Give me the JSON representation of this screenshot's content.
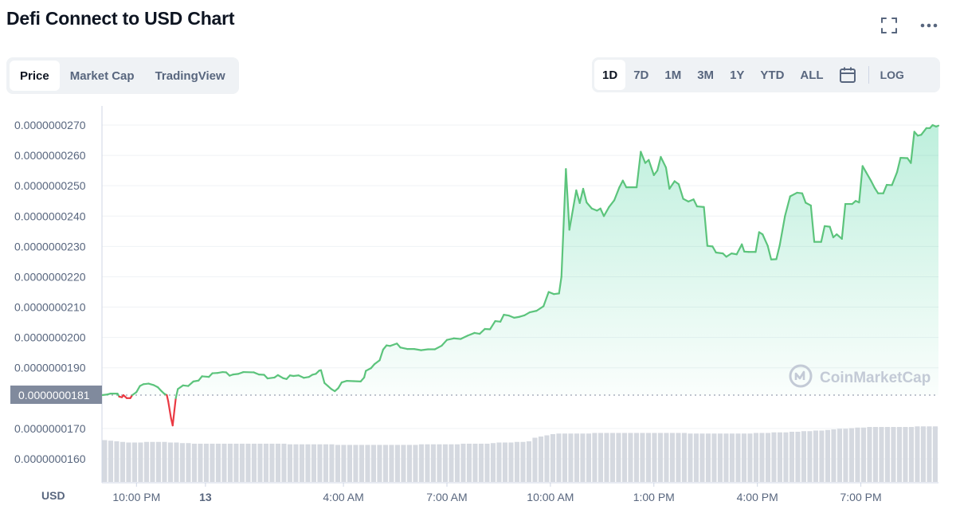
{
  "title": "Defi Connect to USD Chart",
  "header_icons": [
    "fullscreen-icon",
    "more-icon"
  ],
  "tabs": [
    {
      "label": "Price",
      "active": true
    },
    {
      "label": "Market Cap",
      "active": false
    },
    {
      "label": "TradingView",
      "active": false
    }
  ],
  "ranges": [
    {
      "label": "1D",
      "active": true
    },
    {
      "label": "7D",
      "active": false
    },
    {
      "label": "1M",
      "active": false
    },
    {
      "label": "3M",
      "active": false
    },
    {
      "label": "1Y",
      "active": false
    },
    {
      "label": "YTD",
      "active": false
    },
    {
      "label": "ALL",
      "active": false
    }
  ],
  "calendar_icon": "calendar-icon",
  "log_label": "LOG",
  "watermark": "CoinMarketCap",
  "colors": {
    "up": "#16c784",
    "line_up": "#5cc47c",
    "down": "#ea3943",
    "grid": "#eff2f5",
    "current_label_bg": "#808a9d",
    "volume": "#d5d9e0"
  },
  "chart_data": {
    "type": "line",
    "title": "Defi Connect to USD Chart",
    "ylabel": "USD",
    "y_ticks": [
      "0.0000000160",
      "0.0000000170",
      "0.0000000181",
      "0.0000000190",
      "0.0000000200",
      "0.0000000210",
      "0.0000000220",
      "0.0000000230",
      "0.0000000240",
      "0.0000000250",
      "0.0000000260",
      "0.0000000270"
    ],
    "y_tick_values": [
      1.6e-08,
      1.7e-08,
      1.81e-08,
      1.9e-08,
      2e-08,
      2.1e-08,
      2.2e-08,
      2.3e-08,
      2.4e-08,
      2.5e-08,
      2.6e-08,
      2.7e-08
    ],
    "ylim": [
      1.55e-08,
      2.72e-08
    ],
    "x_unit": "hours since 12 21:00",
    "xlim": [
      0,
      24.25
    ],
    "x_ticks": [
      {
        "label": "10:00 PM",
        "x": 1,
        "bold": false
      },
      {
        "label": "13",
        "x": 3,
        "bold": true
      },
      {
        "label": "4:00 AM",
        "x": 7,
        "bold": false
      },
      {
        "label": "7:00 AM",
        "x": 10,
        "bold": false
      },
      {
        "label": "10:00 AM",
        "x": 13,
        "bold": false
      },
      {
        "label": "1:00 PM",
        "x": 16,
        "bold": false
      },
      {
        "label": "4:00 PM",
        "x": 19,
        "bold": false
      },
      {
        "label": "7:00 PM",
        "x": 22,
        "bold": false
      }
    ],
    "reference_price": 1.81e-08,
    "reference_label": "0.0000000181",
    "series": [
      {
        "points": [
          [
            0.0,
            1.81e-08
          ],
          [
            0.15,
            1.812e-08
          ],
          [
            0.25,
            1.815e-08
          ],
          [
            0.45,
            1.815e-08
          ],
          [
            0.5,
            1.805e-08
          ],
          [
            0.58,
            1.803e-08
          ],
          [
            0.62,
            1.81e-08
          ],
          [
            0.72,
            1.8e-08
          ],
          [
            0.82,
            1.8e-08
          ],
          [
            0.88,
            1.81e-08
          ],
          [
            1.0,
            1.82e-08
          ],
          [
            1.1,
            1.84e-08
          ],
          [
            1.2,
            1.846e-08
          ],
          [
            1.35,
            1.848e-08
          ],
          [
            1.5,
            1.843e-08
          ],
          [
            1.62,
            1.836e-08
          ],
          [
            1.7,
            1.826e-08
          ],
          [
            1.8,
            1.815e-08
          ],
          [
            1.88,
            1.81e-08
          ],
          [
            1.92,
            1.79e-08
          ],
          [
            2.0,
            1.735e-08
          ],
          [
            2.05,
            1.71e-08
          ],
          [
            2.1,
            1.76e-08
          ],
          [
            2.14,
            1.8e-08
          ],
          [
            2.2,
            1.83e-08
          ],
          [
            2.35,
            1.842e-08
          ],
          [
            2.5,
            1.84e-08
          ],
          [
            2.65,
            1.855e-08
          ],
          [
            2.8,
            1.858e-08
          ],
          [
            2.9,
            1.872e-08
          ],
          [
            3.1,
            1.87e-08
          ],
          [
            3.2,
            1.882e-08
          ],
          [
            3.35,
            1.883e-08
          ],
          [
            3.5,
            1.886e-08
          ],
          [
            3.6,
            1.885e-08
          ],
          [
            3.7,
            1.874e-08
          ],
          [
            3.8,
            1.878e-08
          ],
          [
            3.95,
            1.88e-08
          ],
          [
            4.1,
            1.886e-08
          ],
          [
            4.4,
            1.885e-08
          ],
          [
            4.55,
            1.878e-08
          ],
          [
            4.7,
            1.877e-08
          ],
          [
            4.8,
            1.865e-08
          ],
          [
            5.0,
            1.868e-08
          ],
          [
            5.1,
            1.876e-08
          ],
          [
            5.25,
            1.866e-08
          ],
          [
            5.35,
            1.863e-08
          ],
          [
            5.45,
            1.875e-08
          ],
          [
            5.55,
            1.873e-08
          ],
          [
            5.7,
            1.875e-08
          ],
          [
            5.85,
            1.867e-08
          ],
          [
            6.0,
            1.87e-08
          ],
          [
            6.1,
            1.877e-08
          ],
          [
            6.2,
            1.88e-08
          ],
          [
            6.3,
            1.891e-08
          ],
          [
            6.35,
            1.892e-08
          ],
          [
            6.45,
            1.85e-08
          ],
          [
            6.55,
            1.84e-08
          ],
          [
            6.65,
            1.83e-08
          ],
          [
            6.75,
            1.823e-08
          ],
          [
            6.85,
            1.833e-08
          ],
          [
            6.95,
            1.852e-08
          ],
          [
            7.1,
            1.857e-08
          ],
          [
            7.3,
            1.856e-08
          ],
          [
            7.5,
            1.855e-08
          ],
          [
            7.6,
            1.868e-08
          ],
          [
            7.65,
            1.89e-08
          ],
          [
            7.8,
            1.899e-08
          ],
          [
            7.9,
            1.912e-08
          ],
          [
            8.05,
            1.925e-08
          ],
          [
            8.15,
            1.96e-08
          ],
          [
            8.25,
            1.974e-08
          ],
          [
            8.35,
            1.972e-08
          ],
          [
            8.55,
            1.98e-08
          ],
          [
            8.65,
            1.967e-08
          ],
          [
            8.85,
            1.962e-08
          ],
          [
            9.05,
            1.962e-08
          ],
          [
            9.25,
            1.958e-08
          ],
          [
            9.45,
            1.961e-08
          ],
          [
            9.65,
            1.961e-08
          ],
          [
            9.85,
            1.973e-08
          ],
          [
            10.0,
            1.992e-08
          ],
          [
            10.2,
            1.997e-08
          ],
          [
            10.4,
            1.995e-08
          ],
          [
            10.6,
            2.006e-08
          ],
          [
            10.8,
            2.015e-08
          ],
          [
            10.95,
            2.012e-08
          ],
          [
            11.1,
            2.028e-08
          ],
          [
            11.25,
            2.027e-08
          ],
          [
            11.4,
            2.054e-08
          ],
          [
            11.55,
            2.052e-08
          ],
          [
            11.65,
            2.075e-08
          ],
          [
            11.8,
            2.072e-08
          ],
          [
            11.95,
            2.065e-08
          ],
          [
            12.1,
            2.068e-08
          ],
          [
            12.25,
            2.073e-08
          ],
          [
            12.4,
            2.083e-08
          ],
          [
            12.6,
            2.088e-08
          ],
          [
            12.8,
            2.103e-08
          ],
          [
            12.95,
            2.15e-08
          ],
          [
            13.1,
            2.143e-08
          ],
          [
            13.25,
            2.145e-08
          ],
          [
            13.32,
            2.2e-08
          ],
          [
            13.45,
            2.555e-08
          ],
          [
            13.55,
            2.355e-08
          ],
          [
            13.65,
            2.42e-08
          ],
          [
            13.75,
            2.485e-08
          ],
          [
            13.85,
            2.443e-08
          ],
          [
            13.95,
            2.49e-08
          ],
          [
            14.05,
            2.445e-08
          ],
          [
            14.2,
            2.425e-08
          ],
          [
            14.35,
            2.418e-08
          ],
          [
            14.45,
            2.425e-08
          ],
          [
            14.55,
            2.4e-08
          ],
          [
            14.7,
            2.43e-08
          ],
          [
            14.85,
            2.452e-08
          ],
          [
            15.0,
            2.495e-08
          ],
          [
            15.1,
            2.517e-08
          ],
          [
            15.2,
            2.495e-08
          ],
          [
            15.5,
            2.495e-08
          ],
          [
            15.62,
            2.612e-08
          ],
          [
            15.75,
            2.575e-08
          ],
          [
            15.85,
            2.585e-08
          ],
          [
            16.0,
            2.535e-08
          ],
          [
            16.1,
            2.55e-08
          ],
          [
            16.2,
            2.595e-08
          ],
          [
            16.35,
            2.56e-08
          ],
          [
            16.45,
            2.49e-08
          ],
          [
            16.6,
            2.515e-08
          ],
          [
            16.72,
            2.505e-08
          ],
          [
            16.85,
            2.457e-08
          ],
          [
            17.0,
            2.448e-08
          ],
          [
            17.15,
            2.455e-08
          ],
          [
            17.25,
            2.432e-08
          ],
          [
            17.45,
            2.43e-08
          ],
          [
            17.55,
            2.302e-08
          ],
          [
            17.7,
            2.3e-08
          ],
          [
            17.8,
            2.28e-08
          ],
          [
            18.0,
            2.277e-08
          ],
          [
            18.1,
            2.266e-08
          ],
          [
            18.25,
            2.277e-08
          ],
          [
            18.4,
            2.274e-08
          ],
          [
            18.55,
            2.307e-08
          ],
          [
            18.62,
            2.283e-08
          ],
          [
            18.75,
            2.282e-08
          ],
          [
            18.95,
            2.282e-08
          ],
          [
            19.05,
            2.347e-08
          ],
          [
            19.15,
            2.34e-08
          ],
          [
            19.3,
            2.302e-08
          ],
          [
            19.4,
            2.257e-08
          ],
          [
            19.55,
            2.258e-08
          ],
          [
            19.65,
            2.305e-08
          ],
          [
            19.8,
            2.4e-08
          ],
          [
            19.95,
            2.465e-08
          ],
          [
            20.15,
            2.477e-08
          ],
          [
            20.3,
            2.475e-08
          ],
          [
            20.4,
            2.444e-08
          ],
          [
            20.55,
            2.435e-08
          ],
          [
            20.65,
            2.315e-08
          ],
          [
            20.85,
            2.315e-08
          ],
          [
            20.95,
            2.367e-08
          ],
          [
            21.1,
            2.365e-08
          ],
          [
            21.2,
            2.33e-08
          ],
          [
            21.3,
            2.34e-08
          ],
          [
            21.45,
            2.325e-08
          ],
          [
            21.55,
            2.44e-08
          ],
          [
            21.75,
            2.44e-08
          ],
          [
            21.85,
            2.45e-08
          ],
          [
            21.95,
            2.445e-08
          ],
          [
            22.05,
            2.565e-08
          ],
          [
            22.15,
            2.545e-08
          ],
          [
            22.3,
            2.515e-08
          ],
          [
            22.4,
            2.493e-08
          ],
          [
            22.5,
            2.475e-08
          ],
          [
            22.65,
            2.475e-08
          ],
          [
            22.75,
            2.503e-08
          ],
          [
            22.9,
            2.502e-08
          ],
          [
            23.05,
            2.545e-08
          ],
          [
            23.15,
            2.592e-08
          ],
          [
            23.35,
            2.591e-08
          ],
          [
            23.45,
            2.575e-08
          ],
          [
            23.55,
            2.678e-08
          ],
          [
            23.65,
            2.665e-08
          ],
          [
            23.75,
            2.668e-08
          ],
          [
            23.9,
            2.69e-08
          ],
          [
            24.0,
            2.69e-08
          ],
          [
            24.08,
            2.7e-08
          ],
          [
            24.18,
            2.695e-08
          ],
          [
            24.25,
            2.698e-08
          ]
        ]
      }
    ],
    "volume": [
      0.7,
      0.69,
      0.68,
      0.67,
      0.66,
      0.66,
      0.66,
      0.67,
      0.67,
      0.67,
      0.67,
      0.66,
      0.66,
      0.65,
      0.65,
      0.64,
      0.64,
      0.64,
      0.64,
      0.64,
      0.64,
      0.64,
      0.64,
      0.64,
      0.64,
      0.64,
      0.64,
      0.64,
      0.64,
      0.64,
      0.64,
      0.63,
      0.63,
      0.63,
      0.63,
      0.63,
      0.63,
      0.63,
      0.63,
      0.62,
      0.62,
      0.62,
      0.62,
      0.62,
      0.62,
      0.62,
      0.62,
      0.62,
      0.62,
      0.62,
      0.62,
      0.62,
      0.62,
      0.63,
      0.63,
      0.63,
      0.63,
      0.63,
      0.63,
      0.63,
      0.64,
      0.64,
      0.64,
      0.64,
      0.64,
      0.65,
      0.66,
      0.66,
      0.66,
      0.67,
      0.67,
      0.68,
      0.74,
      0.76,
      0.78,
      0.8,
      0.81,
      0.81,
      0.81,
      0.81,
      0.81,
      0.81,
      0.82,
      0.82,
      0.82,
      0.82,
      0.82,
      0.82,
      0.82,
      0.82,
      0.82,
      0.82,
      0.82,
      0.82,
      0.82,
      0.82,
      0.82,
      0.82,
      0.81,
      0.81,
      0.81,
      0.81,
      0.81,
      0.81,
      0.81,
      0.81,
      0.81,
      0.81,
      0.81,
      0.82,
      0.82,
      0.82,
      0.83,
      0.83,
      0.83,
      0.84,
      0.84,
      0.85,
      0.85,
      0.86,
      0.86,
      0.87,
      0.88,
      0.89,
      0.89,
      0.9,
      0.91,
      0.91,
      0.92,
      0.92,
      0.92,
      0.92,
      0.92,
      0.92,
      0.92,
      0.92,
      0.93,
      0.93,
      0.93,
      0.93
    ]
  }
}
